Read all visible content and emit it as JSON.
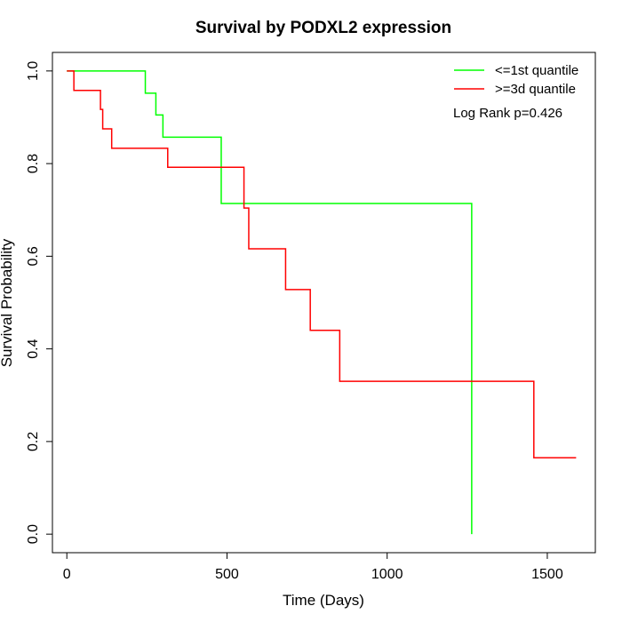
{
  "chart_data": {
    "type": "line",
    "step": "post",
    "title": "Survival by PODXL2 expression",
    "xlabel": "Time (Days)",
    "ylabel": "Survival Probability",
    "xlim": [
      -45,
      1650
    ],
    "ylim": [
      -0.04,
      1.04
    ],
    "xticks": [
      0,
      500,
      1000,
      1500
    ],
    "yticks": [
      0.0,
      0.2,
      0.4,
      0.6,
      0.8,
      1.0
    ],
    "xtick_labels": [
      "0",
      "500",
      "1000",
      "1500"
    ],
    "ytick_labels": [
      "0.0",
      "0.2",
      "0.4",
      "0.6",
      "0.8",
      "1.0"
    ],
    "legend_position": "top-right",
    "annotation": "Log Rank p=0.426",
    "series": [
      {
        "name": "<=1st quantile",
        "color": "#00ff00",
        "points": [
          [
            0,
            1.0
          ],
          [
            245,
            1.0
          ],
          [
            245,
            0.952
          ],
          [
            278,
            0.952
          ],
          [
            278,
            0.905
          ],
          [
            300,
            0.905
          ],
          [
            300,
            0.857
          ],
          [
            482,
            0.857
          ],
          [
            482,
            0.714
          ],
          [
            1264,
            0.714
          ],
          [
            1264,
            0.0
          ]
        ]
      },
      {
        "name": ">=3d quantile",
        "color": "#ff0000",
        "points": [
          [
            0,
            1.0
          ],
          [
            22,
            1.0
          ],
          [
            22,
            0.958
          ],
          [
            105,
            0.958
          ],
          [
            105,
            0.917
          ],
          [
            112,
            0.917
          ],
          [
            112,
            0.875
          ],
          [
            140,
            0.875
          ],
          [
            140,
            0.833
          ],
          [
            315,
            0.833
          ],
          [
            315,
            0.792
          ],
          [
            553,
            0.792
          ],
          [
            553,
            0.704
          ],
          [
            568,
            0.704
          ],
          [
            568,
            0.616
          ],
          [
            683,
            0.616
          ],
          [
            683,
            0.528
          ],
          [
            760,
            0.528
          ],
          [
            760,
            0.44
          ],
          [
            852,
            0.44
          ],
          [
            852,
            0.33
          ],
          [
            1458,
            0.33
          ],
          [
            1458,
            0.165
          ],
          [
            1590,
            0.165
          ]
        ]
      }
    ]
  }
}
